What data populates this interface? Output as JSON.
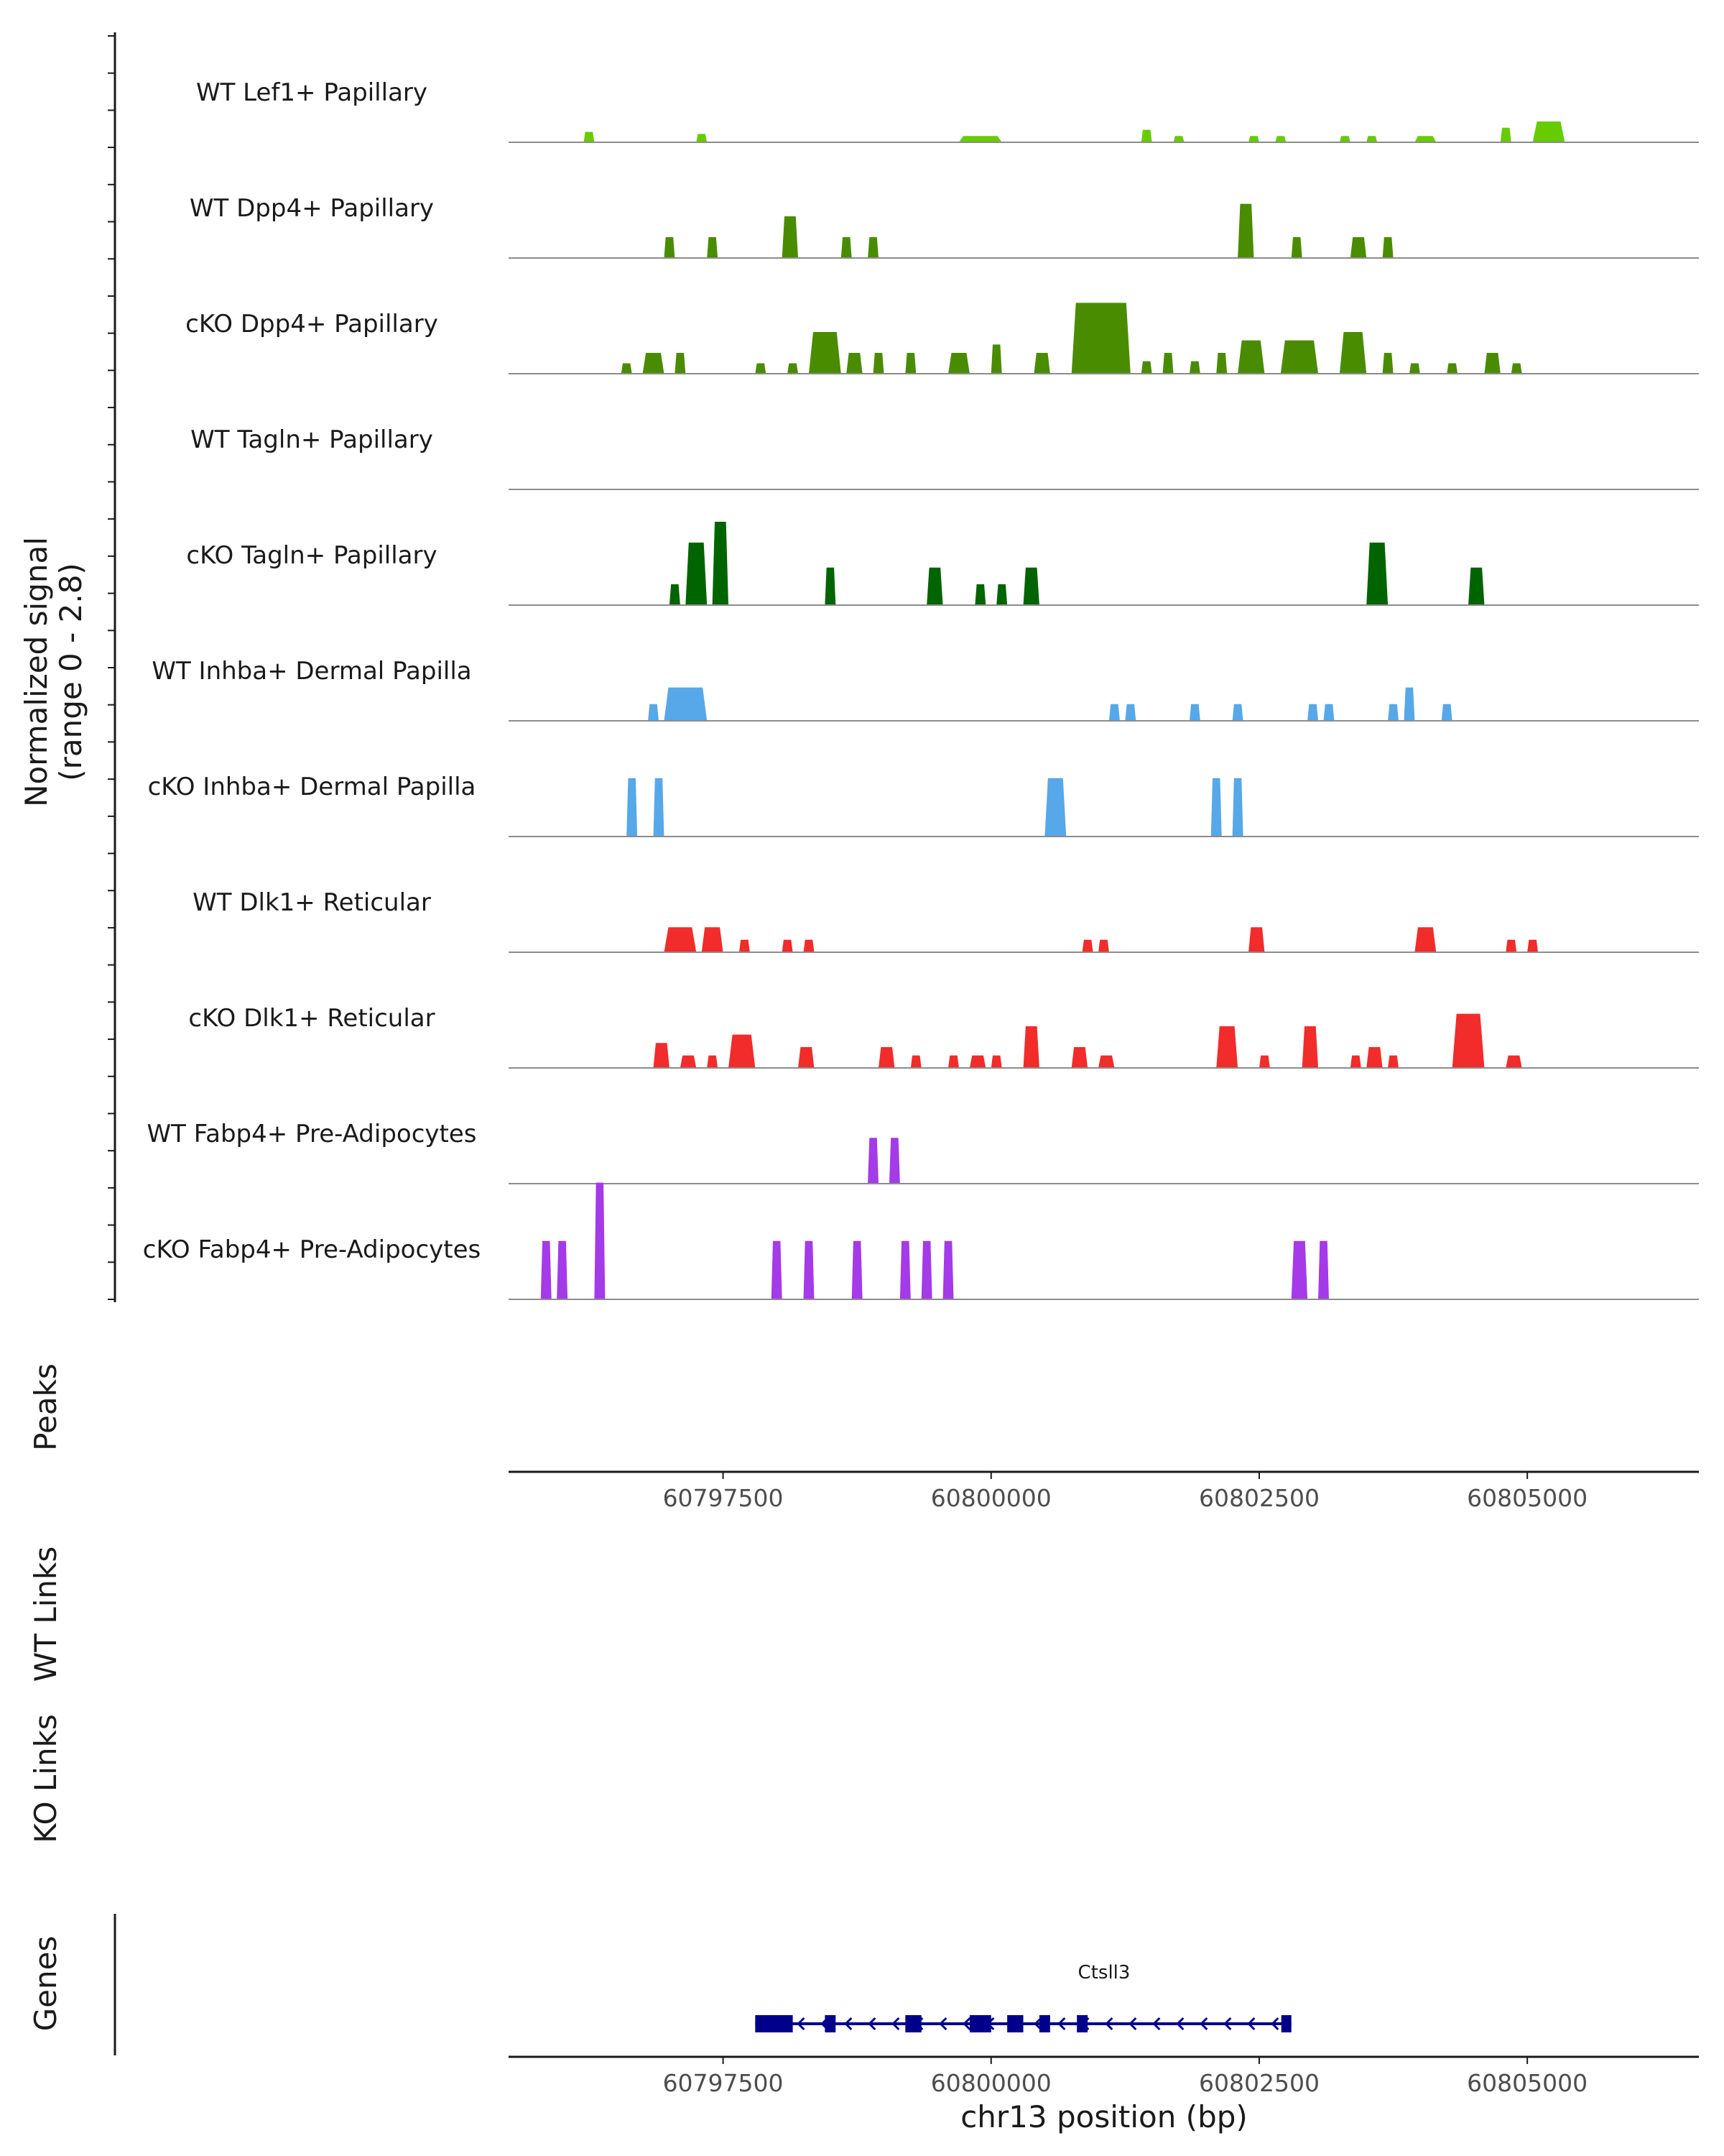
{
  "chart_data": {
    "type": "coverage-track",
    "chromosome": "chr13",
    "x_axis": {
      "title": "chr13 position (bp)",
      "range": [
        60795500,
        60806600
      ],
      "ticks": [
        60797500,
        60800000,
        60802500,
        60805000
      ],
      "tick_labels": [
        "60797500",
        "60800000",
        "60802500",
        "60805000"
      ]
    },
    "y_axis": {
      "title_line1": "Normalized signal",
      "title_line2": "(range 0 - 2.8)",
      "range": [
        0,
        2.8
      ]
    },
    "tracks": [
      {
        "name": "WT Lef1+ Papillary",
        "color": "#66cc00",
        "peaks": [
          [
            60796200,
            60796300,
            0.25
          ],
          [
            60797250,
            60797350,
            0.2
          ],
          [
            60799700,
            60800100,
            0.15
          ],
          [
            60801400,
            60801500,
            0.3
          ],
          [
            60801700,
            60801800,
            0.15
          ],
          [
            60802400,
            60802500,
            0.15
          ],
          [
            60802650,
            60802750,
            0.15
          ],
          [
            60803250,
            60803350,
            0.15
          ],
          [
            60803500,
            60803600,
            0.15
          ],
          [
            60803950,
            60804150,
            0.15
          ],
          [
            60804750,
            60804850,
            0.35
          ],
          [
            60805050,
            60805350,
            0.5
          ]
        ]
      },
      {
        "name": "WT Dpp4+ Papillary",
        "color": "#4a8c00",
        "peaks": [
          [
            60796950,
            60797050,
            0.5
          ],
          [
            60797350,
            60797450,
            0.5
          ],
          [
            60798050,
            60798200,
            1.0
          ],
          [
            60798600,
            60798700,
            0.5
          ],
          [
            60798850,
            60798950,
            0.5
          ],
          [
            60802300,
            60802450,
            1.3
          ],
          [
            60802800,
            60802900,
            0.5
          ],
          [
            60803350,
            60803500,
            0.5
          ],
          [
            60803650,
            60803750,
            0.5
          ]
        ]
      },
      {
        "name": "cKO Dpp4+ Papillary",
        "color": "#4a8c00",
        "peaks": [
          [
            60796550,
            60796650,
            0.25
          ],
          [
            60796750,
            60796950,
            0.5
          ],
          [
            60797050,
            60797150,
            0.5
          ],
          [
            60797800,
            60797900,
            0.25
          ],
          [
            60798100,
            60798200,
            0.25
          ],
          [
            60798300,
            60798600,
            1.0
          ],
          [
            60798650,
            60798800,
            0.5
          ],
          [
            60798900,
            60799000,
            0.5
          ],
          [
            60799200,
            60799300,
            0.5
          ],
          [
            60799600,
            60799800,
            0.5
          ],
          [
            60800000,
            60800100,
            0.7
          ],
          [
            60800400,
            60800550,
            0.5
          ],
          [
            60800750,
            60801300,
            1.7
          ],
          [
            60801400,
            60801500,
            0.3
          ],
          [
            60801600,
            60801700,
            0.5
          ],
          [
            60801850,
            60801950,
            0.3
          ],
          [
            60802100,
            60802200,
            0.5
          ],
          [
            60802300,
            60802550,
            0.8
          ],
          [
            60802700,
            60803050,
            0.8
          ],
          [
            60803250,
            60803500,
            1.0
          ],
          [
            60803650,
            60803750,
            0.5
          ],
          [
            60803900,
            60804000,
            0.25
          ],
          [
            60804250,
            60804350,
            0.25
          ],
          [
            60804600,
            60804750,
            0.5
          ],
          [
            60804850,
            60804950,
            0.25
          ]
        ]
      },
      {
        "name": "WT Tagln+ Papillary",
        "color": "#006400",
        "peaks": []
      },
      {
        "name": "cKO Tagln+ Papillary",
        "color": "#006400",
        "peaks": [
          [
            60797000,
            60797100,
            0.5
          ],
          [
            60797150,
            60797350,
            1.5
          ],
          [
            60797400,
            60797550,
            2.0
          ],
          [
            60798450,
            60798550,
            0.9
          ],
          [
            60799400,
            60799550,
            0.9
          ],
          [
            60799850,
            60799950,
            0.5
          ],
          [
            60800050,
            60800150,
            0.5
          ],
          [
            60800300,
            60800450,
            0.9
          ],
          [
            60803500,
            60803700,
            1.5
          ],
          [
            60804450,
            60804600,
            0.9
          ]
        ]
      },
      {
        "name": "WT Inhba+ Dermal Papilla",
        "color": "#56a8e8",
        "peaks": [
          [
            60796800,
            60796900,
            0.4
          ],
          [
            60796950,
            60797350,
            0.8
          ],
          [
            60801100,
            60801200,
            0.4
          ],
          [
            60801250,
            60801350,
            0.4
          ],
          [
            60801850,
            60801950,
            0.4
          ],
          [
            60802250,
            60802350,
            0.4
          ],
          [
            60802950,
            60803050,
            0.4
          ],
          [
            60803100,
            60803200,
            0.4
          ],
          [
            60803700,
            60803800,
            0.4
          ],
          [
            60803850,
            60803950,
            0.8
          ],
          [
            60804200,
            60804300,
            0.4
          ]
        ]
      },
      {
        "name": "cKO Inhba+ Dermal Papilla",
        "color": "#56a8e8",
        "peaks": [
          [
            60796600,
            60796700,
            1.4
          ],
          [
            60796850,
            60796950,
            1.4
          ],
          [
            60800500,
            60800700,
            1.4
          ],
          [
            60802050,
            60802150,
            1.4
          ],
          [
            60802250,
            60802350,
            1.4
          ]
        ]
      },
      {
        "name": "WT Dlk1+ Reticular",
        "color": "#f22b2b",
        "peaks": [
          [
            60796950,
            60797250,
            0.6
          ],
          [
            60797300,
            60797500,
            0.6
          ],
          [
            60797650,
            60797750,
            0.3
          ],
          [
            60798050,
            60798150,
            0.3
          ],
          [
            60798250,
            60798350,
            0.3
          ],
          [
            60800850,
            60800950,
            0.3
          ],
          [
            60801000,
            60801100,
            0.3
          ],
          [
            60802400,
            60802550,
            0.6
          ],
          [
            60803950,
            60804150,
            0.6
          ],
          [
            60804800,
            60804900,
            0.3
          ],
          [
            60805000,
            60805100,
            0.3
          ]
        ]
      },
      {
        "name": "cKO Dlk1+ Reticular",
        "color": "#f22b2b",
        "peaks": [
          [
            60796850,
            60797000,
            0.6
          ],
          [
            60797100,
            60797250,
            0.3
          ],
          [
            60797350,
            60797450,
            0.3
          ],
          [
            60797550,
            60797800,
            0.8
          ],
          [
            60798200,
            60798350,
            0.5
          ],
          [
            60798950,
            60799100,
            0.5
          ],
          [
            60799250,
            60799350,
            0.3
          ],
          [
            60799600,
            60799700,
            0.3
          ],
          [
            60799800,
            60799950,
            0.3
          ],
          [
            60800000,
            60800100,
            0.3
          ],
          [
            60800300,
            60800450,
            1.0
          ],
          [
            60800750,
            60800900,
            0.5
          ],
          [
            60801000,
            60801150,
            0.3
          ],
          [
            60802100,
            60802300,
            1.0
          ],
          [
            60802500,
            60802600,
            0.3
          ],
          [
            60802900,
            60803050,
            1.0
          ],
          [
            60803350,
            60803450,
            0.3
          ],
          [
            60803500,
            60803650,
            0.5
          ],
          [
            60803700,
            60803800,
            0.3
          ],
          [
            60804300,
            60804600,
            1.3
          ],
          [
            60804800,
            60804950,
            0.3
          ]
        ]
      },
      {
        "name": "WT Fabp4+ Pre-Adipocytes",
        "color": "#a43ae8",
        "peaks": [
          [
            60798850,
            60798950,
            1.1
          ],
          [
            60799050,
            60799150,
            1.1
          ]
        ]
      },
      {
        "name": "cKO Fabp4+ Pre-Adipocytes",
        "color": "#a43ae8",
        "peaks": [
          [
            60795800,
            60795900,
            1.4
          ],
          [
            60795950,
            60796050,
            1.4
          ],
          [
            60796300,
            60796400,
            2.8
          ],
          [
            60797950,
            60798050,
            1.4
          ],
          [
            60798250,
            60798350,
            1.4
          ],
          [
            60798700,
            60798800,
            1.4
          ],
          [
            60799150,
            60799250,
            1.4
          ],
          [
            60799350,
            60799450,
            1.4
          ],
          [
            60799550,
            60799650,
            1.4
          ],
          [
            60802800,
            60802950,
            1.4
          ],
          [
            60803050,
            60803150,
            1.4
          ]
        ]
      }
    ],
    "other_panels": [
      "Peaks",
      "WT Links",
      "KO Links",
      "Genes"
    ],
    "gene": {
      "name": "Ctsll3",
      "start": 60797800,
      "end": 60802800,
      "strand": "-",
      "color": "#00008b",
      "exons": [
        [
          60797800,
          60798150
        ],
        [
          60798450,
          60798550
        ],
        [
          60799200,
          60799350
        ],
        [
          60799800,
          60800000
        ],
        [
          60800150,
          60800300
        ],
        [
          60800450,
          60800550
        ],
        [
          60800800,
          60800900
        ]
      ]
    }
  }
}
